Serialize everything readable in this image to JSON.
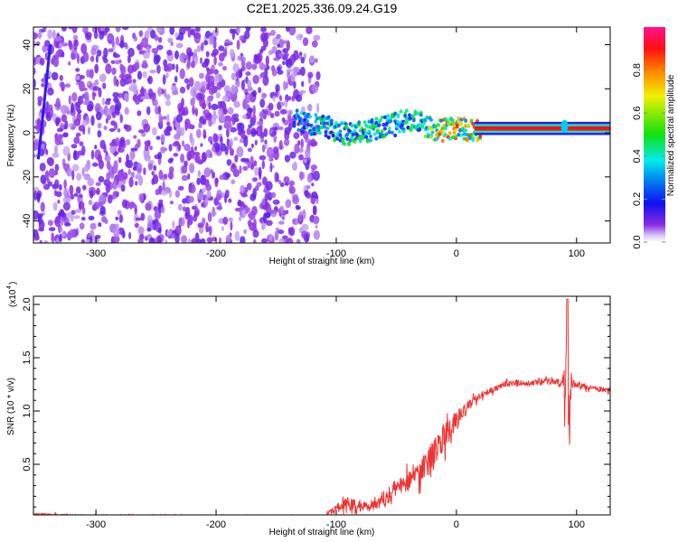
{
  "chart_data": [
    {
      "type": "heatmap",
      "title": "C2E1.2025.336.09.24.G19",
      "xlabel": "Height of straight line (km)",
      "ylabel": "Frequency (Hz)",
      "xlim": [
        -352,
        128
      ],
      "ylim": [
        -50,
        48
      ],
      "xticks": [
        -300,
        -200,
        -100,
        0,
        100
      ],
      "yticks": [
        40,
        20,
        0,
        -20,
        -40
      ],
      "colorbar": {
        "label": "Normalized spectral amplitude",
        "ticks": [
          "0.0",
          "0.2",
          "0.4",
          "0.6",
          "0.8"
        ],
        "range": [
          0,
          1
        ]
      },
      "noise_region_km": [
        -352,
        -125
      ],
      "ridge": {
        "x": [
          -135,
          -125,
          -115,
          -105,
          -95,
          -85,
          -75,
          -65,
          -55,
          -45,
          -35,
          -25,
          -15,
          -5,
          5,
          15,
          30,
          50,
          70,
          85,
          90,
          100,
          115,
          128
        ],
        "freq": [
          6,
          4,
          3,
          2,
          0,
          -1,
          1,
          2,
          3,
          5,
          6,
          3,
          1,
          2,
          2,
          1,
          2,
          2,
          2,
          2,
          5,
          2,
          2,
          2
        ],
        "amplitude": [
          0.3,
          0.4,
          0.45,
          0.5,
          0.45,
          0.5,
          0.5,
          0.45,
          0.5,
          0.4,
          0.5,
          0.6,
          0.8,
          0.85,
          0.85,
          0.9,
          0.9,
          0.9,
          0.9,
          0.9,
          0.5,
          0.9,
          0.9,
          0.9
        ]
      }
    },
    {
      "type": "line",
      "xlabel": "Height of straight line (km)",
      "ylabel": "SNR (10 * v/v)",
      "yscale_label": "(x10",
      "yscale_exp": "4",
      "xlim": [
        -352,
        128
      ],
      "ylim": [
        0,
        2.07
      ],
      "xticks": [
        -300,
        -200,
        -100,
        0,
        100
      ],
      "yticks": [
        "0.5",
        "1.0",
        "1.5",
        "2.0"
      ],
      "series": [
        {
          "name": "SNR",
          "color": "#ee3333",
          "x": [
            -352,
            -300,
            -250,
            -200,
            -150,
            -110,
            -100,
            -90,
            -80,
            -70,
            -60,
            -50,
            -40,
            -30,
            -20,
            -10,
            0,
            10,
            20,
            30,
            40,
            50,
            60,
            70,
            80,
            88,
            92,
            94,
            96,
            100,
            110,
            120,
            128
          ],
          "mean": [
            0.03,
            0.02,
            0.02,
            0.02,
            0.02,
            0.02,
            0.08,
            0.14,
            0.1,
            0.12,
            0.18,
            0.28,
            0.35,
            0.45,
            0.6,
            0.75,
            0.9,
            1.05,
            1.15,
            1.2,
            1.25,
            1.27,
            1.25,
            1.28,
            1.28,
            1.25,
            1.3,
            1.0,
            1.25,
            1.25,
            1.22,
            1.2,
            1.2
          ],
          "noise": [
            0.02,
            0.01,
            0.01,
            0.01,
            0.01,
            0.01,
            0.08,
            0.12,
            0.1,
            0.12,
            0.15,
            0.2,
            0.2,
            0.25,
            0.25,
            0.25,
            0.2,
            0.1,
            0.07,
            0.06,
            0.05,
            0.05,
            0.05,
            0.05,
            0.05,
            0.1,
            0.75,
            0.5,
            0.1,
            0.05,
            0.05,
            0.05,
            0.05
          ]
        }
      ]
    }
  ]
}
